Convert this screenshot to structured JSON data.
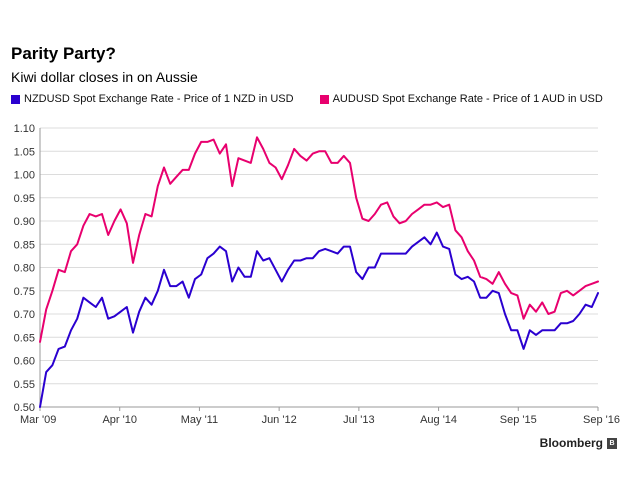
{
  "brand": {
    "name": "Bloomberg",
    "mark_icon": "bloomberg-mark-icon"
  },
  "chart_data": {
    "type": "line",
    "title": "Parity Party?",
    "subtitle": "Kiwi dollar closes in on Aussie",
    "xlabel": "",
    "ylabel": "",
    "ylim": [
      0.5,
      1.1
    ],
    "yticks": [
      "0.50",
      "0.55",
      "0.60",
      "0.65",
      "0.70",
      "0.75",
      "0.80",
      "0.85",
      "0.90",
      "0.95",
      "1.00",
      "1.05",
      "1.10"
    ],
    "xticks": [
      "Mar '09",
      "Apr '10",
      "May '11",
      "Jun '12",
      "Jul '13",
      "Aug '14",
      "Sep '15",
      "Sep '16"
    ],
    "grid": true,
    "legend_position": "top",
    "series": [
      {
        "name": "NZDUSD Spot Exchange Rate - Price of 1 NZD in USD",
        "color": "#2a00d0",
        "values": [
          0.5,
          0.575,
          0.59,
          0.625,
          0.63,
          0.665,
          0.69,
          0.735,
          0.725,
          0.715,
          0.735,
          0.69,
          0.695,
          0.705,
          0.715,
          0.66,
          0.705,
          0.735,
          0.72,
          0.75,
          0.795,
          0.76,
          0.76,
          0.77,
          0.735,
          0.775,
          0.785,
          0.82,
          0.83,
          0.845,
          0.835,
          0.77,
          0.8,
          0.78,
          0.78,
          0.835,
          0.815,
          0.82,
          0.795,
          0.77,
          0.795,
          0.815,
          0.815,
          0.82,
          0.82,
          0.835,
          0.84,
          0.835,
          0.83,
          0.845,
          0.845,
          0.79,
          0.775,
          0.8,
          0.8,
          0.83,
          0.83,
          0.83,
          0.83,
          0.83,
          0.845,
          0.855,
          0.865,
          0.85,
          0.875,
          0.845,
          0.84,
          0.785,
          0.775,
          0.78,
          0.77,
          0.735,
          0.735,
          0.75,
          0.745,
          0.7,
          0.665,
          0.665,
          0.625,
          0.665,
          0.655,
          0.665,
          0.665,
          0.665,
          0.68,
          0.68,
          0.685,
          0.7,
          0.72,
          0.715,
          0.745
        ]
      },
      {
        "name": "AUDUSD Spot Exchange Rate - Price of 1 AUD in USD",
        "color": "#e8006e",
        "values": [
          0.64,
          0.71,
          0.75,
          0.795,
          0.79,
          0.835,
          0.85,
          0.89,
          0.915,
          0.91,
          0.915,
          0.87,
          0.9,
          0.925,
          0.895,
          0.81,
          0.87,
          0.915,
          0.91,
          0.975,
          1.015,
          0.98,
          0.995,
          1.01,
          1.01,
          1.045,
          1.07,
          1.07,
          1.075,
          1.045,
          1.065,
          0.975,
          1.035,
          1.03,
          1.025,
          1.08,
          1.055,
          1.025,
          1.015,
          0.99,
          1.02,
          1.055,
          1.04,
          1.03,
          1.045,
          1.05,
          1.05,
          1.025,
          1.025,
          1.04,
          1.025,
          0.95,
          0.905,
          0.9,
          0.915,
          0.935,
          0.94,
          0.91,
          0.895,
          0.9,
          0.915,
          0.925,
          0.935,
          0.935,
          0.94,
          0.93,
          0.935,
          0.88,
          0.865,
          0.835,
          0.815,
          0.78,
          0.775,
          0.765,
          0.79,
          0.765,
          0.745,
          0.74,
          0.69,
          0.72,
          0.705,
          0.725,
          0.7,
          0.705,
          0.745,
          0.75,
          0.74,
          0.75,
          0.76,
          0.765,
          0.77
        ]
      }
    ]
  }
}
